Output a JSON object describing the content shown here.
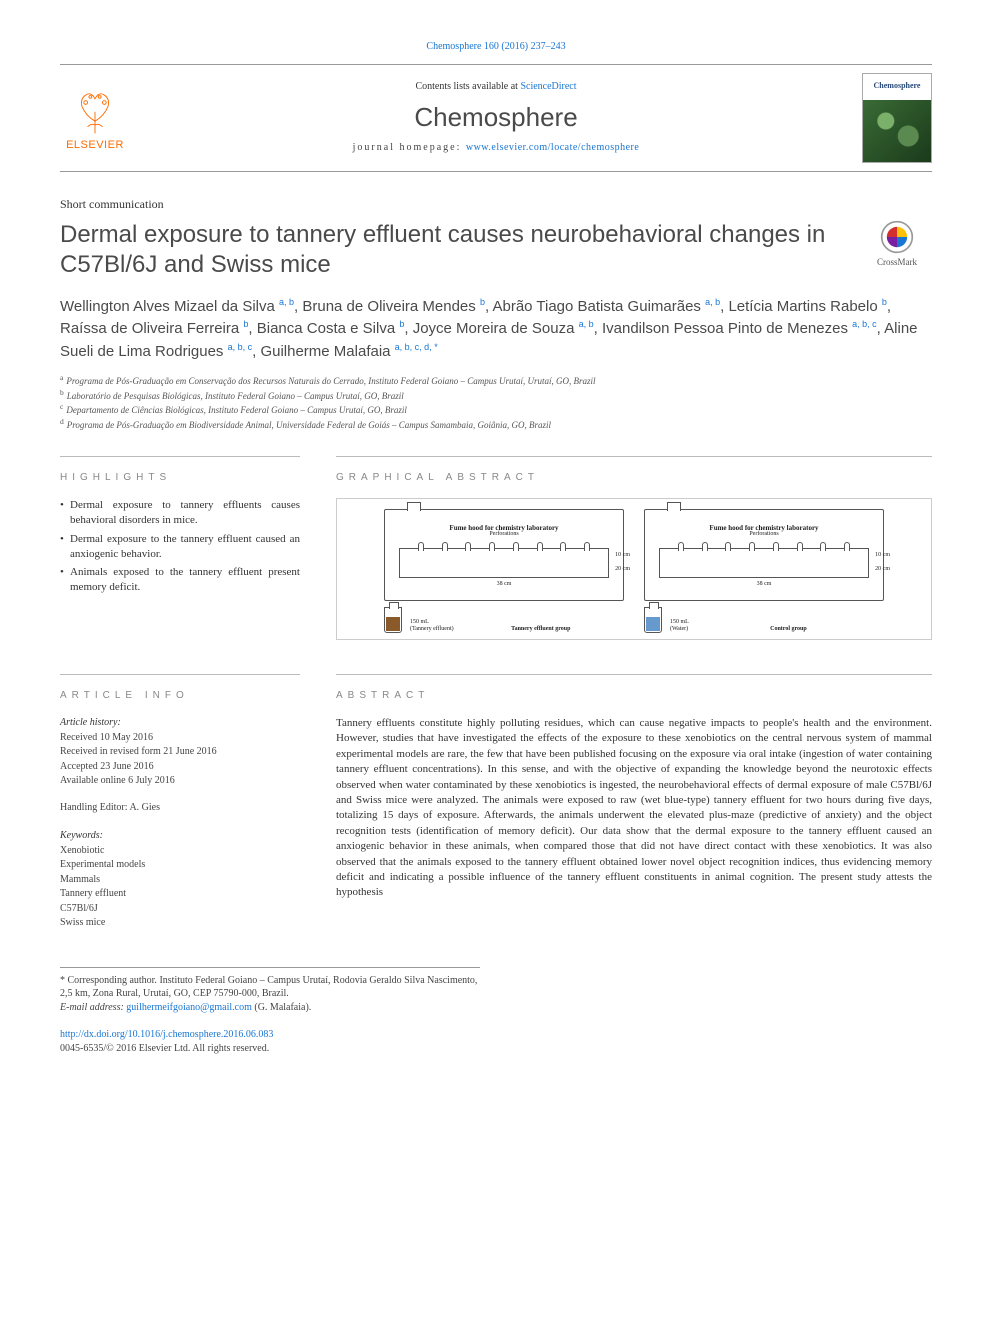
{
  "citation": "Chemosphere 160 (2016) 237–243",
  "masthead": {
    "contents_prefix": "Contents lists available at ",
    "contents_link": "ScienceDirect",
    "journal": "Chemosphere",
    "homepage_prefix": "journal homepage: ",
    "homepage_url": "www.elsevier.com/locate/chemosphere",
    "publisher": "ELSEVIER",
    "cover_title": "Chemosphere"
  },
  "article_type": "Short communication",
  "title": "Dermal exposure to tannery effluent causes neurobehavioral changes in C57Bl/6J and Swiss mice",
  "crossmark": "CrossMark",
  "authors_html": "Wellington Alves Mizael da Silva <sup>a, b</sup>, Bruna de Oliveira Mendes <sup>b</sup>, Abrão Tiago Batista Guimarães <sup>a, b</sup>, Letícia Martins Rabelo <sup>b</sup>, Raíssa de Oliveira Ferreira <sup>b</sup>, Bianca Costa e Silva <sup>b</sup>, Joyce Moreira de Souza <sup>a, b</sup>, Ivandilson Pessoa Pinto de Menezes <sup>a, b, c</sup>, Aline Sueli de Lima Rodrigues <sup>a, b, c</sup>, Guilherme Malafaia <sup>a, b, c, d, <span class=\"corr\">*</span></sup>",
  "affiliations": [
    {
      "key": "a",
      "text": "Programa de Pós-Graduação em Conservação dos Recursos Naturais do Cerrado, Instituto Federal Goiano – Campus Urutaí, Urutaí, GO, Brazil"
    },
    {
      "key": "b",
      "text": "Laboratório de Pesquisas Biológicas, Instituto Federal Goiano – Campus Urutaí, GO, Brazil"
    },
    {
      "key": "c",
      "text": "Departamento de Ciências Biológicas, Instituto Federal Goiano – Campus Urutaí, GO, Brazil"
    },
    {
      "key": "d",
      "text": "Programa de Pós-Graduação em Biodiversidade Animal, Universidade Federal de Goiás – Campus Samambaia, Goiânia, GO, Brazil"
    }
  ],
  "sections": {
    "highlights": "HIGHLIGHTS",
    "graphical": "GRAPHICAL ABSTRACT",
    "info": "ARTICLE INFO",
    "abstract": "ABSTRACT"
  },
  "highlights": [
    "Dermal exposure to tannery effluents causes behavioral disorders in mice.",
    "Dermal exposure to the tannery effluent caused an anxiogenic behavior.",
    "Animals exposed to the tannery effluent present memory deficit."
  ],
  "graphical_abstract": {
    "hood_label": "Fume hood for chemistry laboratory",
    "perforations_label": "Perforations",
    "left": {
      "bottle_vol": "150 mL",
      "bottle_sub": "(Tannery effluent)",
      "group": "Tannery effluent group",
      "bottle_color": "#8b5a2b"
    },
    "right": {
      "bottle_vol": "150 mL",
      "bottle_sub": "(Water)",
      "group": "Control group",
      "bottle_color": "#6699cc"
    },
    "dims": {
      "w": "38 cm",
      "h_top": "10 cm",
      "h_bot": "20 cm"
    }
  },
  "article_info": {
    "history_label": "Article history:",
    "received": "Received 10 May 2016",
    "revised": "Received in revised form 21 June 2016",
    "accepted": "Accepted 23 June 2016",
    "online": "Available online 6 July 2016",
    "handling_editor_label": "Handling Editor:",
    "handling_editor": "A. Gies",
    "keywords_label": "Keywords:",
    "keywords": [
      "Xenobiotic",
      "Experimental models",
      "Mammals",
      "Tannery effluent",
      "C57Bl/6J",
      "Swiss mice"
    ]
  },
  "abstract": "Tannery effluents constitute highly polluting residues, which can cause negative impacts to people's health and the environment. However, studies that have investigated the effects of the exposure to these xenobiotics on the central nervous system of mammal experimental models are rare, the few that have been published focusing on the exposure via oral intake (ingestion of water containing tannery effluent concentrations). In this sense, and with the objective of expanding the knowledge beyond the neurotoxic effects observed when water contaminated by these xenobiotics is ingested, the neurobehavioral effects of dermal exposure of male C57Bl/6J and Swiss mice were analyzed. The animals were exposed to raw (wet blue-type) tannery effluent for two hours during five days, totalizing 15 days of exposure. Afterwards, the animals underwent the elevated plus-maze (predictive of anxiety) and the object recognition tests (identification of memory deficit). Our data show that the dermal exposure to the tannery effluent caused an anxiogenic behavior in these animals, when compared those that did not have direct contact with these xenobiotics. It was also observed that the animals exposed to the tannery effluent obtained lower novel object recognition indices, thus evidencing memory deficit and indicating a possible influence of the tannery effluent constituents in animal cognition. The present study attests the hypothesis",
  "footnotes": {
    "corr_label": "* Corresponding author.",
    "corr_text": "Instituto Federal Goiano – Campus Urutaí, Rodovia Geraldo Silva Nascimento, 2,5 km, Zona Rural, Urutaí, GO, CEP 75790-000, Brazil.",
    "email_label": "E-mail address:",
    "email": "guilhermeifgoiano@gmail.com",
    "email_who": "(G. Malafaia)."
  },
  "doi": {
    "url": "http://dx.doi.org/10.1016/j.chemosphere.2016.06.083",
    "copyright": "0045-6535/© 2016 Elsevier Ltd. All rights reserved."
  },
  "colors": {
    "link": "#1976d2",
    "publisher": "#ff6b00",
    "text": "#2b2b2b",
    "muted": "#888888"
  }
}
